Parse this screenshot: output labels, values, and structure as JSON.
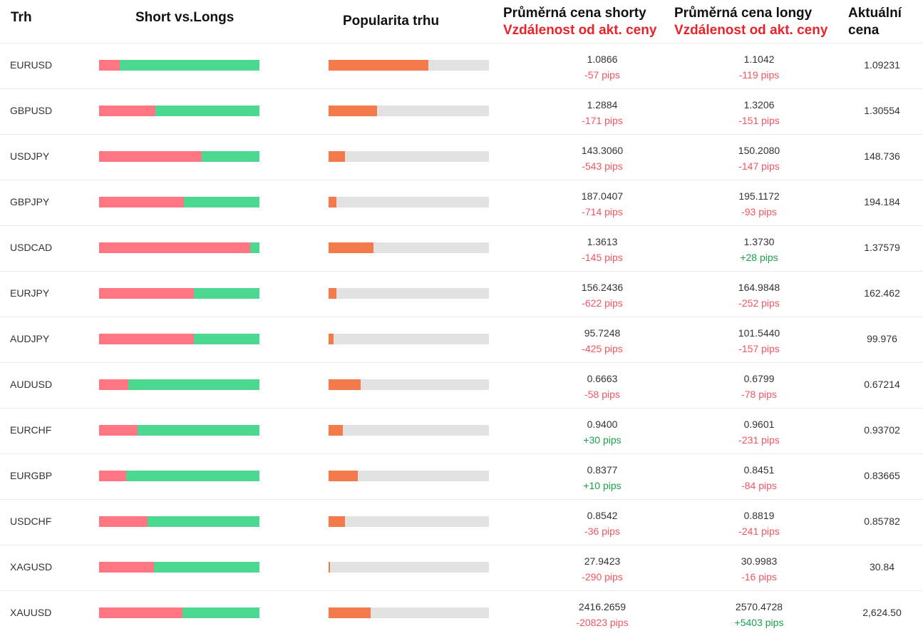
{
  "header": {
    "market": "Trh",
    "short_vs_longs": "Short vs.Longs",
    "popularity": "Popularita trhu",
    "avg_short": "Průměrná cena shorty",
    "avg_long": "Průměrná cena longy",
    "distance": "Vzdálenost od akt. ceny",
    "current_line1": "Aktuální",
    "current_line2": "cena"
  },
  "colors": {
    "short": "#ff7582",
    "long": "#4cd890",
    "popularity": "#f27a4b",
    "track": "#e2e2e2",
    "negative": "#f05561",
    "positive": "#1aa14a",
    "header_red": "#e8242b"
  },
  "rows": [
    {
      "symbol": "EURUSD",
      "short_pct": 13,
      "popularity_pct": 62,
      "avg_short": "1.0866",
      "short_pips": "-57 pips",
      "avg_long": "1.1042",
      "long_pips": "-119 pips",
      "current": "1.09231"
    },
    {
      "symbol": "GBPUSD",
      "short_pct": 35,
      "popularity_pct": 30,
      "avg_short": "1.2884",
      "short_pips": "-171 pips",
      "avg_long": "1.3206",
      "long_pips": "-151 pips",
      "current": "1.30554"
    },
    {
      "symbol": "USDJPY",
      "short_pct": 64,
      "popularity_pct": 10,
      "avg_short": "143.3060",
      "short_pips": "-543 pips",
      "avg_long": "150.2080",
      "long_pips": "-147 pips",
      "current": "148.736"
    },
    {
      "symbol": "GBPJPY",
      "short_pct": 53,
      "popularity_pct": 5,
      "avg_short": "187.0407",
      "short_pips": "-714 pips",
      "avg_long": "195.1172",
      "long_pips": "-93 pips",
      "current": "194.184"
    },
    {
      "symbol": "USDCAD",
      "short_pct": 94,
      "popularity_pct": 28,
      "avg_short": "1.3613",
      "short_pips": "-145 pips",
      "avg_long": "1.3730",
      "long_pips": "+28 pips",
      "current": "1.37579"
    },
    {
      "symbol": "EURJPY",
      "short_pct": 59,
      "popularity_pct": 5,
      "avg_short": "156.2436",
      "short_pips": "-622 pips",
      "avg_long": "164.9848",
      "long_pips": "-252 pips",
      "current": "162.462"
    },
    {
      "symbol": "AUDJPY",
      "short_pct": 59,
      "popularity_pct": 3,
      "avg_short": "95.7248",
      "short_pips": "-425 pips",
      "avg_long": "101.5440",
      "long_pips": "-157 pips",
      "current": "99.976"
    },
    {
      "symbol": "AUDUSD",
      "short_pct": 18,
      "popularity_pct": 20,
      "avg_short": "0.6663",
      "short_pips": "-58 pips",
      "avg_long": "0.6799",
      "long_pips": "-78 pips",
      "current": "0.67214"
    },
    {
      "symbol": "EURCHF",
      "short_pct": 24,
      "popularity_pct": 9,
      "avg_short": "0.9400",
      "short_pips": "+30 pips",
      "avg_long": "0.9601",
      "long_pips": "-231 pips",
      "current": "0.93702"
    },
    {
      "symbol": "EURGBP",
      "short_pct": 17,
      "popularity_pct": 18,
      "avg_short": "0.8377",
      "short_pips": "+10 pips",
      "avg_long": "0.8451",
      "long_pips": "-84 pips",
      "current": "0.83665"
    },
    {
      "symbol": "USDCHF",
      "short_pct": 30,
      "popularity_pct": 10,
      "avg_short": "0.8542",
      "short_pips": "-36 pips",
      "avg_long": "0.8819",
      "long_pips": "-241 pips",
      "current": "0.85782"
    },
    {
      "symbol": "XAGUSD",
      "short_pct": 34,
      "popularity_pct": 1,
      "avg_short": "27.9423",
      "short_pips": "-290 pips",
      "avg_long": "30.9983",
      "long_pips": "-16 pips",
      "current": "30.84"
    },
    {
      "symbol": "XAUUSD",
      "short_pct": 52,
      "popularity_pct": 26,
      "avg_short": "2416.2659",
      "short_pips": "-20823 pips",
      "avg_long": "2570.4728",
      "long_pips": "+5403 pips",
      "current": "2,624.50"
    }
  ]
}
